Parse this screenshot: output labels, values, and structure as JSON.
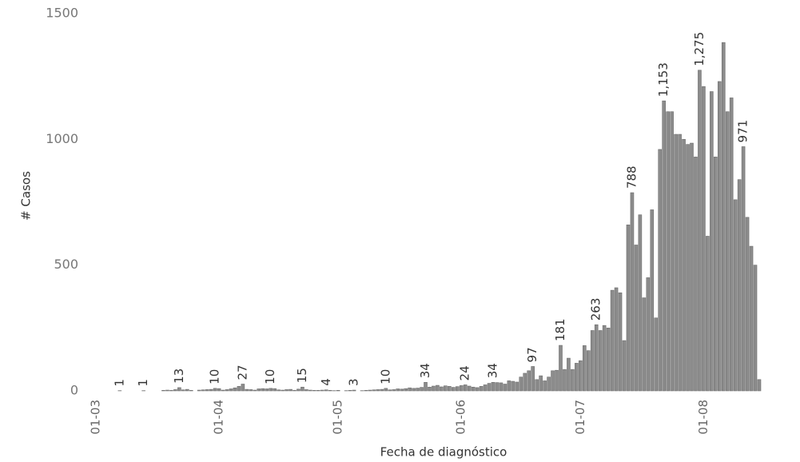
{
  "chart_data": {
    "type": "bar",
    "x_label": "Fecha de diagnóstico",
    "y_label": "# Casos",
    "categories": [
      "01-03",
      null,
      null,
      null,
      null,
      null,
      null,
      null,
      null,
      null,
      null,
      null,
      null,
      null,
      null,
      null,
      null,
      null,
      null,
      null,
      null,
      null,
      null,
      null,
      null,
      null,
      null,
      null,
      null,
      null,
      null,
      "01-04",
      null,
      null,
      null,
      null,
      null,
      null,
      null,
      null,
      null,
      null,
      null,
      null,
      null,
      null,
      null,
      null,
      null,
      null,
      null,
      null,
      null,
      null,
      null,
      null,
      null,
      null,
      null,
      null,
      null,
      "01-05",
      null,
      null,
      null,
      null,
      null,
      null,
      null,
      null,
      null,
      null,
      null,
      null,
      null,
      null,
      null,
      null,
      null,
      null,
      null,
      null,
      null,
      null,
      null,
      null,
      null,
      null,
      null,
      null,
      null,
      null,
      "01-06",
      null,
      null,
      null,
      null,
      null,
      null,
      null,
      null,
      null,
      null,
      null,
      null,
      null,
      null,
      null,
      null,
      null,
      null,
      null,
      null,
      null,
      null,
      null,
      null,
      null,
      null,
      null,
      null,
      null,
      "01-07",
      null,
      null,
      null,
      null,
      null,
      null,
      null,
      null,
      null,
      null,
      null,
      null,
      null,
      null,
      null,
      null,
      null,
      null,
      null,
      null,
      null,
      null,
      null,
      null,
      null,
      null,
      null,
      null,
      null,
      null,
      "01-08",
      null,
      null,
      null,
      null,
      null,
      null,
      null,
      null,
      null,
      null,
      null,
      null,
      null,
      null
    ],
    "values": [
      0,
      0,
      0,
      0,
      0,
      0,
      1,
      0,
      0,
      0,
      0,
      0,
      1,
      0,
      0,
      0,
      0,
      2,
      3,
      2,
      5,
      13,
      4,
      6,
      2,
      0,
      3,
      4,
      5,
      6,
      10,
      9,
      3,
      5,
      8,
      12,
      18,
      27,
      6,
      5,
      3,
      8,
      9,
      8,
      10,
      9,
      4,
      3,
      5,
      6,
      2,
      7,
      15,
      5,
      3,
      2,
      2,
      3,
      4,
      2,
      1,
      2,
      0,
      1,
      2,
      3,
      0,
      1,
      2,
      3,
      4,
      5,
      6,
      10,
      4,
      5,
      8,
      7,
      9,
      12,
      10,
      11,
      14,
      34,
      15,
      19,
      22,
      16,
      20,
      18,
      14,
      17,
      21,
      24,
      19,
      15,
      13,
      18,
      24,
      30,
      34,
      33,
      32,
      27,
      40,
      38,
      35,
      55,
      70,
      80,
      97,
      45,
      60,
      40,
      55,
      80,
      82,
      181,
      85,
      130,
      85,
      110,
      120,
      180,
      160,
      240,
      263,
      240,
      260,
      250,
      400,
      410,
      390,
      200,
      660,
      788,
      580,
      700,
      370,
      450,
      720,
      290,
      960,
      1153,
      1110,
      1110,
      1020,
      1020,
      1000,
      980,
      985,
      930,
      1275,
      1210,
      615,
      1190,
      930,
      1230,
      1385,
      1110,
      1165,
      760,
      840,
      971,
      690,
      575,
      500,
      45
    ],
    "value_labels": [
      null,
      null,
      null,
      null,
      null,
      null,
      "1",
      null,
      null,
      null,
      null,
      null,
      "1",
      null,
      null,
      null,
      null,
      null,
      null,
      null,
      null,
      "13",
      null,
      null,
      null,
      null,
      null,
      null,
      null,
      null,
      "10",
      null,
      null,
      null,
      null,
      null,
      null,
      "27",
      null,
      null,
      null,
      null,
      null,
      null,
      "10",
      null,
      null,
      null,
      null,
      null,
      null,
      null,
      "15",
      null,
      null,
      null,
      null,
      null,
      "4",
      null,
      null,
      null,
      null,
      null,
      null,
      "3",
      null,
      null,
      null,
      null,
      null,
      null,
      null,
      "10",
      null,
      null,
      null,
      null,
      null,
      null,
      null,
      null,
      null,
      "34",
      null,
      null,
      null,
      null,
      null,
      null,
      null,
      null,
      null,
      "24",
      null,
      null,
      null,
      null,
      null,
      null,
      "34",
      null,
      null,
      null,
      null,
      null,
      null,
      null,
      null,
      null,
      "97",
      null,
      null,
      null,
      null,
      null,
      null,
      "181",
      null,
      null,
      null,
      null,
      null,
      null,
      null,
      null,
      "263",
      null,
      null,
      null,
      null,
      null,
      null,
      null,
      null,
      "788",
      null,
      null,
      null,
      null,
      null,
      null,
      null,
      "1,153",
      null,
      null,
      null,
      null,
      null,
      null,
      null,
      null,
      "1,275",
      null,
      null,
      null,
      null,
      null,
      null,
      null,
      null,
      null,
      null,
      "971",
      null,
      null,
      null,
      null
    ],
    "color": "#8c8c8c",
    "ylim": [
      0,
      1500
    ],
    "yticks": [
      0,
      500,
      1000,
      1500
    ]
  }
}
